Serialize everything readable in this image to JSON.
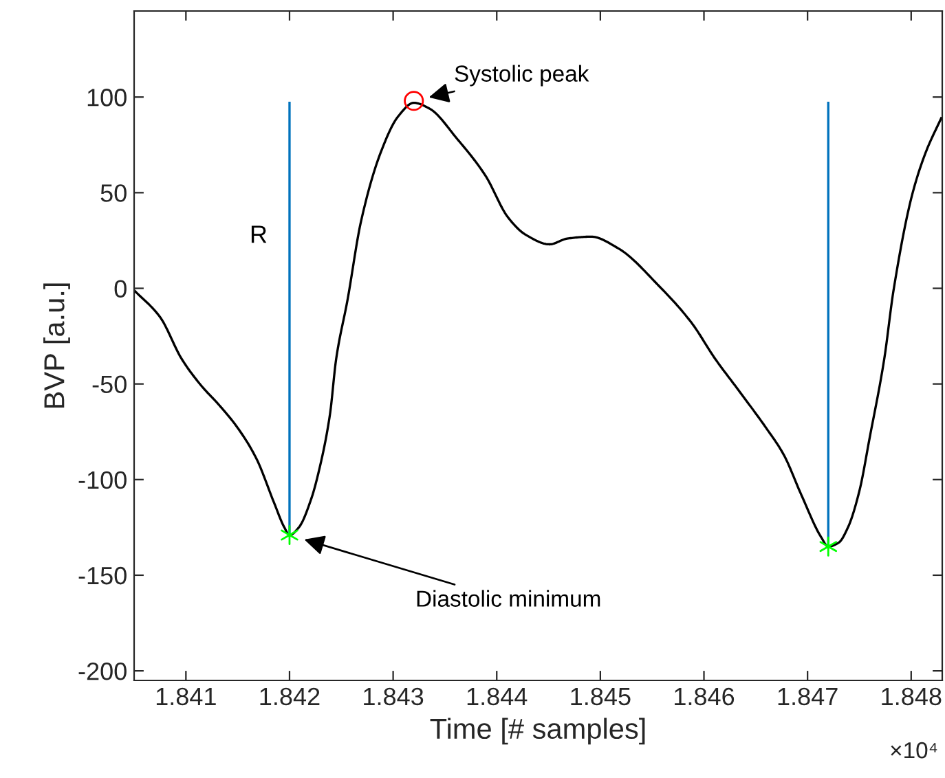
{
  "chart_data": {
    "type": "line",
    "xlabel": "Time [# samples]",
    "ylabel": "BVP [a.u.]",
    "xlim": [
      1.8405,
      1.8483
    ],
    "ylim": [
      -205,
      145
    ],
    "xticks": [
      1.841,
      1.842,
      1.843,
      1.844,
      1.845,
      1.846,
      1.847,
      1.848
    ],
    "yticks": [
      -200,
      -150,
      -100,
      -50,
      0,
      50,
      100
    ],
    "series": [
      {
        "color": "#000000",
        "x": [
          1.8405,
          1.84075,
          1.84096,
          1.84115,
          1.84132,
          1.8415,
          1.84168,
          1.84185,
          1.84195,
          1.842,
          1.84209,
          1.84221,
          1.84229,
          1.84239,
          1.84245,
          1.84256,
          1.84269,
          1.84288,
          1.84305,
          1.8432,
          1.84335,
          1.84362,
          1.84389,
          1.84411,
          1.84428,
          1.84451,
          1.84468,
          1.84491,
          1.84517,
          1.84557,
          1.84588,
          1.84611,
          1.84633,
          1.8466,
          1.84677,
          1.84694,
          1.84713,
          1.8472,
          1.8473,
          1.84739,
          1.8475,
          1.8476,
          1.84774,
          1.84783,
          1.84801,
          1.84814,
          1.84829
        ],
        "values": [
          -1,
          -15,
          -37,
          -51,
          -61,
          -73,
          -89,
          -112,
          -125,
          -129,
          -125,
          -110,
          -94,
          -66,
          -37,
          -6,
          35,
          71,
          90,
          97,
          94,
          78,
          59,
          37,
          28,
          23,
          26,
          27,
          21,
          1,
          -18,
          -37,
          -53,
          -73,
          -87,
          -108,
          -130,
          -135,
          -133,
          -125,
          -106,
          -78,
          -37,
          -1,
          49,
          71,
          89
        ]
      },
      {
        "color": "#0072bd",
        "x": [
          1.842,
          1.842
        ],
        "values": [
          -129,
          97
        ]
      },
      {
        "color": "#0072bd",
        "x": [
          1.8472,
          1.8472
        ],
        "values": [
          -135,
          97
        ]
      },
      {
        "type": "scatter",
        "color": "#ff0000",
        "marker": "circle",
        "x": [
          1.8432
        ],
        "values": [
          98
        ]
      },
      {
        "type": "scatter",
        "color": "#00ff00",
        "marker": "cross",
        "x": [
          1.842,
          1.8472
        ],
        "values": [
          -129,
          -135
        ]
      }
    ],
    "annotations": [
      "Systolic peak",
      "Diastolic minimum",
      "R",
      "×10⁴"
    ]
  }
}
